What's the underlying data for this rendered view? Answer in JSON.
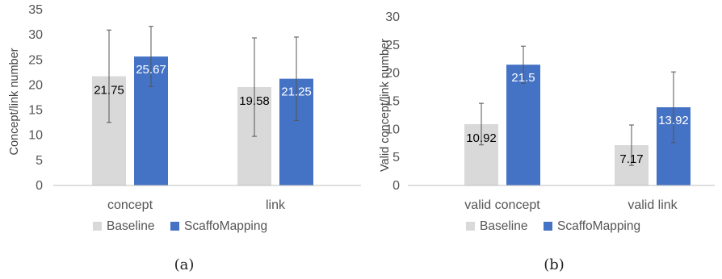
{
  "colors": {
    "Baseline": "#d9d9d9",
    "ScaffoMapping": "#4472c4",
    "axis": "#bfbfbf",
    "error": "#555555"
  },
  "chart_data": [
    {
      "type": "bar",
      "caption": "(a)",
      "ylabel": "Concept/link number",
      "xlabel": "",
      "ylim": [
        0,
        35
      ],
      "yticks": [
        0,
        5,
        10,
        15,
        20,
        25,
        30,
        35
      ],
      "categories": [
        "concept",
        "link"
      ],
      "series": [
        {
          "name": "Baseline",
          "values": [
            21.75,
            19.58
          ],
          "labels": [
            "21.75",
            "19.58"
          ],
          "errors": [
            9.2,
            9.8
          ]
        },
        {
          "name": "ScaffoMapping",
          "values": [
            25.67,
            21.25
          ],
          "labels": [
            "25.67",
            "21.25"
          ],
          "errors": [
            6.0,
            8.3
          ]
        }
      ],
      "legend": "bottom",
      "grid": false
    },
    {
      "type": "bar",
      "caption": "(b)",
      "ylabel": "Valid concept/link number",
      "xlabel": "",
      "ylim": [
        0,
        30
      ],
      "yticks": [
        0,
        5,
        10,
        15,
        20,
        25,
        30
      ],
      "categories": [
        "valid concept",
        "valid link"
      ],
      "series": [
        {
          "name": "Baseline",
          "values": [
            10.92,
            7.17
          ],
          "labels": [
            "10.92",
            "7.17"
          ],
          "errors": [
            3.7,
            3.6
          ]
        },
        {
          "name": "ScaffoMapping",
          "values": [
            21.5,
            13.92
          ],
          "labels": [
            "21.5",
            "13.92"
          ],
          "errors": [
            3.3,
            6.3
          ]
        }
      ],
      "legend": "bottom",
      "grid": false
    }
  ]
}
